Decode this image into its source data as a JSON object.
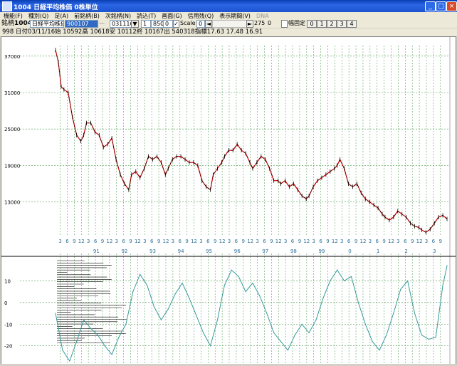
{
  "window": {
    "title": "1004 日経平均株価 0株単位",
    "controls": {
      "minimize": "_",
      "maximize": "□",
      "close": "×"
    }
  },
  "menu": [
    {
      "label": "機能(F)"
    },
    {
      "label": "種別(Q)"
    },
    {
      "label": "足(A)"
    },
    {
      "label": "前銘柄(B)"
    },
    {
      "label": "次銘柄(N)"
    },
    {
      "label": "読込(T)"
    },
    {
      "label": "画面(G)"
    },
    {
      "label": "信用残(Q)"
    },
    {
      "label": "表示期間(V)"
    },
    {
      "label": "DNA",
      "disabled": true
    }
  ],
  "toolbar": {
    "code_label": "銘柄",
    "code_value": "1004",
    "name_value": "日経平均株価",
    "from_date": "900107",
    "to_date": "031116",
    "num1": "1",
    "num2": "850",
    "num3": "0",
    "scale_label": "Scale",
    "scale_value": "0",
    "scroll_value": "275",
    "scroll_value2": "0",
    "fixed_width_label": "幅固定",
    "page_buttons": [
      "0",
      "1",
      "2",
      "3",
      "4"
    ]
  },
  "info_line": "998 日付03/11/16始 10592高 10618安 10112終 10167出 540318指標17.63   17.48   16.91",
  "chart_data": [
    {
      "type": "line",
      "panel": "price",
      "ylim": [
        8500,
        38500
      ],
      "yticks": [
        13000,
        19000,
        25000,
        31000,
        37000
      ],
      "ytick_labels": [
        "13000",
        "19000",
        "25000",
        "31000",
        "37000"
      ],
      "grid": true,
      "year_labels": [
        "91",
        "92",
        "93",
        "94",
        "95",
        "96",
        "97",
        "98",
        "99",
        "0",
        "1",
        "2",
        "3"
      ],
      "month_labels": [
        "3",
        "6",
        "9",
        "12"
      ],
      "x_start": 1990.0,
      "x_end": 2003.9,
      "series": [
        {
          "color": "#cc0000",
          "x": [
            1990.0,
            1990.1,
            1990.2,
            1990.3,
            1990.45,
            1990.6,
            1990.75,
            1990.9,
            1991.0,
            1991.1,
            1991.25,
            1991.4,
            1991.55,
            1991.7,
            1991.85,
            1992.0,
            1992.15,
            1992.3,
            1992.45,
            1992.6,
            1992.7,
            1992.85,
            1993.0,
            1993.15,
            1993.3,
            1993.45,
            1993.6,
            1993.75,
            1993.9,
            1994.0,
            1994.15,
            1994.3,
            1994.45,
            1994.6,
            1994.75,
            1994.9,
            1995.05,
            1995.2,
            1995.35,
            1995.5,
            1995.6,
            1995.75,
            1995.9,
            1996.0,
            1996.15,
            1996.3,
            1996.45,
            1996.6,
            1996.75,
            1996.9,
            1997.0,
            1997.15,
            1997.3,
            1997.45,
            1997.6,
            1997.75,
            1997.9,
            1998.0,
            1998.15,
            1998.3,
            1998.45,
            1998.6,
            1998.75,
            1998.9,
            1999.0,
            1999.15,
            1999.3,
            1999.45,
            1999.6,
            1999.75,
            1999.9,
            2000.0,
            2000.1,
            2000.25,
            2000.4,
            2000.55,
            2000.7,
            2000.85,
            2001.0,
            2001.15,
            2001.3,
            2001.45,
            2001.6,
            2001.7,
            2001.85,
            2002.0,
            2002.15,
            2002.3,
            2002.45,
            2002.6,
            2002.75,
            2002.9,
            2003.0,
            2003.15,
            2003.3,
            2003.45,
            2003.6,
            2003.75,
            2003.9
          ],
          "values": [
            38000,
            36000,
            32000,
            31500,
            31000,
            27000,
            24000,
            23000,
            24000,
            26000,
            26000,
            24500,
            24000,
            22000,
            22500,
            23500,
            20000,
            17500,
            16000,
            15000,
            17500,
            18000,
            17000,
            18500,
            20500,
            20000,
            20500,
            19500,
            17500,
            18500,
            20000,
            20500,
            20500,
            20000,
            19500,
            19500,
            19000,
            16500,
            15500,
            15000,
            17500,
            18500,
            19500,
            20500,
            21500,
            21500,
            22500,
            21500,
            21000,
            19500,
            18500,
            19500,
            20500,
            20000,
            18500,
            16500,
            16500,
            16000,
            16500,
            15500,
            16000,
            15000,
            14000,
            13500,
            14000,
            15500,
            16500,
            17000,
            17500,
            18000,
            18500,
            19000,
            20000,
            18500,
            16000,
            15500,
            16000,
            14500,
            13500,
            13000,
            12500,
            12000,
            11000,
            10500,
            10000,
            10500,
            11500,
            11000,
            10500,
            9500,
            9000,
            8800,
            8400,
            8000,
            8500,
            9500,
            10500,
            10800,
            10200
          ]
        }
      ]
    },
    {
      "type": "line",
      "panel": "indicator",
      "ylim": [
        -28,
        20
      ],
      "yticks": [
        -20,
        -10,
        0,
        10
      ],
      "ytick_labels": [
        "-20",
        "-10",
        "0",
        "10"
      ],
      "grid": true,
      "series": [
        {
          "color": "#3a9a9a",
          "x": [
            1990.0,
            1990.25,
            1990.5,
            1990.75,
            1991.0,
            1991.25,
            1991.5,
            1991.75,
            1992.0,
            1992.25,
            1992.5,
            1992.75,
            1993.0,
            1993.25,
            1993.5,
            1993.75,
            1994.0,
            1994.25,
            1994.5,
            1994.75,
            1995.0,
            1995.25,
            1995.5,
            1995.75,
            1996.0,
            1996.25,
            1996.5,
            1996.75,
            1997.0,
            1997.25,
            1997.5,
            1997.75,
            1998.0,
            1998.25,
            1998.5,
            1998.75,
            1999.0,
            1999.25,
            1999.5,
            1999.75,
            2000.0,
            2000.25,
            2000.5,
            2000.75,
            2001.0,
            2001.25,
            2001.5,
            2001.75,
            2002.0,
            2002.25,
            2002.5,
            2002.75,
            2003.0,
            2003.25,
            2003.5,
            2003.75,
            2003.9
          ],
          "values": [
            -5,
            -22,
            -27,
            -18,
            -8,
            -12,
            -15,
            -20,
            -24,
            -16,
            -10,
            5,
            13,
            8,
            -2,
            -8,
            -3,
            4,
            9,
            2,
            -6,
            -14,
            -20,
            -8,
            8,
            15,
            12,
            5,
            9,
            3,
            -5,
            -14,
            -18,
            -22,
            -15,
            -10,
            -14,
            -8,
            2,
            10,
            15,
            10,
            12,
            0,
            -10,
            -18,
            -22,
            -15,
            -5,
            6,
            10,
            -5,
            -15,
            -17,
            -16,
            8,
            17
          ]
        }
      ]
    }
  ]
}
